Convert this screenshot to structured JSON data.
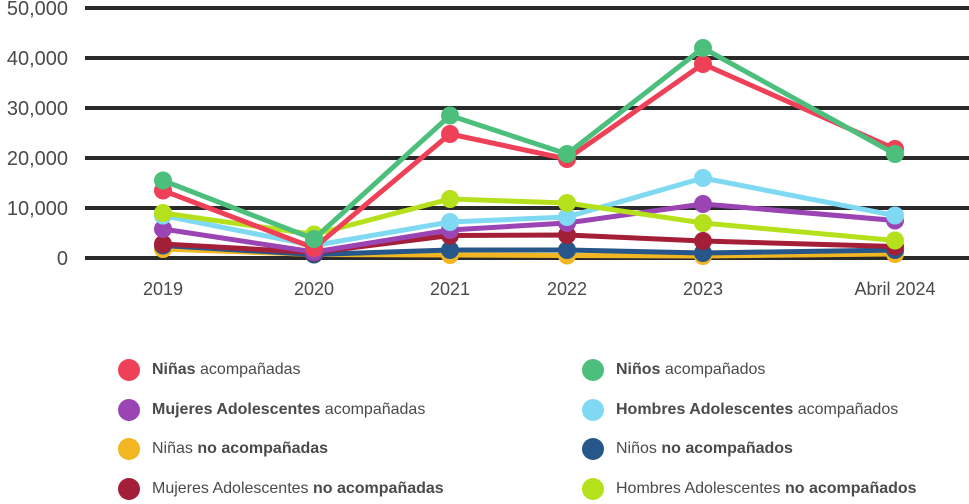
{
  "chart_data": {
    "type": "line",
    "title": "",
    "xlabel": "",
    "ylabel": "",
    "categories": [
      "2019",
      "2020",
      "2021",
      "2022",
      "2023",
      "Abril 2024"
    ],
    "ylim": [
      0,
      50000
    ],
    "yticks": [
      0,
      10000,
      20000,
      30000,
      40000,
      50000
    ],
    "ytick_labels": [
      "0",
      "10,000",
      "20,000",
      "30,000",
      "40,000",
      "50,000"
    ],
    "grid": true,
    "legend_position": "bottom",
    "series": [
      {
        "id": "ninas-acomp",
        "label_bold": "Niñas",
        "label_rest": " acompañadas",
        "bold_first": true,
        "color": "#ee4056",
        "values": [
          13500,
          2000,
          24800,
          19800,
          38800,
          21800
        ]
      },
      {
        "id": "ninos-acomp",
        "label_bold": "Niños",
        "label_rest": " acompañados",
        "bold_first": true,
        "color": "#4dbf7c",
        "values": [
          15500,
          3800,
          28500,
          20800,
          42000,
          20800
        ]
      },
      {
        "id": "mujeres-adol-acomp",
        "label_bold": "Mujeres Adolescentes",
        "label_rest": " acompañadas",
        "bold_first": true,
        "color": "#9b44b4",
        "values": [
          5800,
          1200,
          5600,
          7000,
          10800,
          7500
        ]
      },
      {
        "id": "hombres-adol-acomp",
        "label_bold": "Hombres Adolescentes",
        "label_rest": " acompañados",
        "bold_first": true,
        "color": "#80d9f3",
        "values": [
          8500,
          2500,
          7200,
          8200,
          16000,
          8500
        ]
      },
      {
        "id": "ninas-no-acomp",
        "label_bold": "no acompañadas",
        "label_rest": "Niñas ",
        "bold_first": false,
        "color": "#f3b623",
        "values": [
          1800,
          700,
          600,
          500,
          400,
          800
        ]
      },
      {
        "id": "ninos-no-acomp",
        "label_bold": "no acompañados",
        "label_rest": "Niños ",
        "bold_first": false,
        "color": "#26568a",
        "values": [
          2500,
          700,
          1600,
          1600,
          1000,
          1600
        ]
      },
      {
        "id": "mujeres-adol-no-acomp",
        "label_bold": "no acompañadas",
        "label_rest": "Mujeres Adolescentes ",
        "bold_first": false,
        "color": "#a31f38",
        "values": [
          2800,
          1100,
          4500,
          4600,
          3400,
          2300
        ]
      },
      {
        "id": "hombres-adol-no-acomp",
        "label_bold": "no acompañados",
        "label_rest": "Hombres Adolescentes ",
        "bold_first": false,
        "color": "#b5e11c",
        "values": [
          9000,
          4700,
          11800,
          11000,
          7000,
          3500
        ]
      }
    ]
  }
}
